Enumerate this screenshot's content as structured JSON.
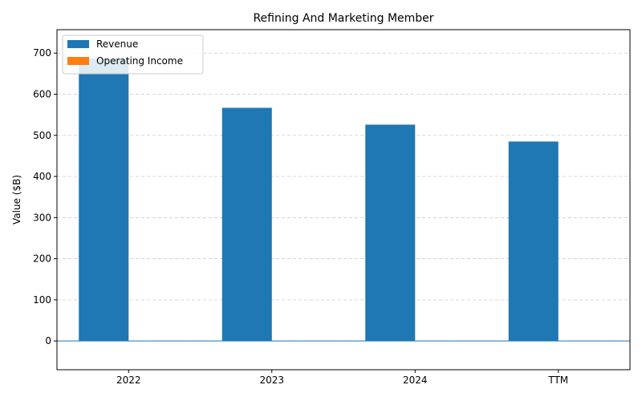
{
  "chart_data": {
    "type": "bar",
    "title": "Refining And Marketing Member",
    "xlabel": "",
    "ylabel": "Value ($B)",
    "categories": [
      "2022",
      "2023",
      "2024",
      "TTM"
    ],
    "series": [
      {
        "name": "Revenue",
        "color": "#1f77b4",
        "values": [
          687,
          567,
          526,
          485
        ]
      },
      {
        "name": "Operating Income",
        "color": "#ff7f0e",
        "values": [
          0,
          0,
          0,
          0
        ]
      }
    ],
    "ylim": [
      -70,
      757
    ],
    "yticks": [
      0,
      100,
      200,
      300,
      400,
      500,
      600,
      700
    ],
    "grid": "y-dashed",
    "legend": "top-left",
    "zero_line": true
  }
}
